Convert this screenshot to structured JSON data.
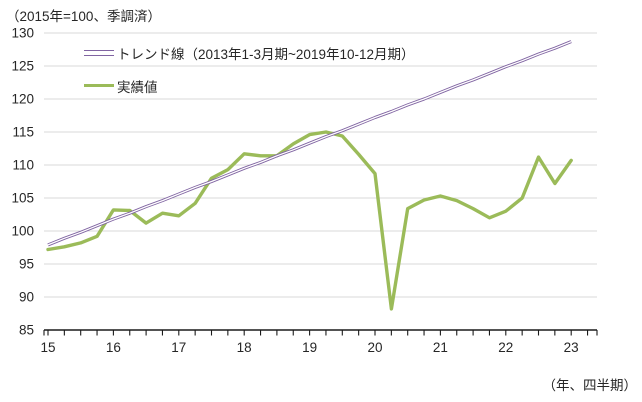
{
  "header": {
    "unit_note": "（2015年=100、季調済）"
  },
  "footer": {
    "xaxis_note": "（年、四半期）"
  },
  "colors": {
    "trend": "#8064a2",
    "actual": "#9bbb59",
    "gridline": "#d9d9d9",
    "axis": "#1a1a1a",
    "text": "#262626"
  },
  "chart_data": {
    "type": "line",
    "title": "",
    "unit_note": "（2015年=100、季調済）",
    "xaxis_note": "（年、四半期）",
    "x_frequency": "quarterly",
    "x_start": "2015Q1",
    "x_end": "2023Q1",
    "ylim": [
      85,
      130
    ],
    "ytick_step": 5,
    "grid": "horizontal",
    "legend_position": "top-left-inside",
    "y_tick_labels": [
      "130",
      "125",
      "120",
      "115",
      "110",
      "105",
      "100",
      "95",
      "90",
      "85"
    ],
    "x_year_labels": [
      "15",
      "16",
      "17",
      "18",
      "19",
      "20",
      "21",
      "22",
      "23"
    ],
    "series": [
      {
        "name": "トレンド線（2013年1-3月期~2019年10-12月期）",
        "color": "#8064a2",
        "style": "double",
        "values": [
          97.9,
          98.9,
          99.8,
          100.8,
          101.8,
          102.7,
          103.7,
          104.6,
          105.6,
          106.6,
          107.5,
          108.5,
          109.5,
          110.4,
          111.4,
          112.3,
          113.3,
          114.3,
          115.2,
          116.2,
          117.2,
          118.1,
          119.1,
          120.0,
          121.0,
          122.0,
          122.9,
          123.9,
          124.9,
          125.8,
          126.8,
          127.7,
          128.7
        ]
      },
      {
        "name": "実績値",
        "color": "#9bbb59",
        "style": "solid",
        "values": [
          97.2,
          97.6,
          98.2,
          99.2,
          103.2,
          103.1,
          101.2,
          102.7,
          102.3,
          104.2,
          108.0,
          109.3,
          111.7,
          111.4,
          111.4,
          113.2,
          114.6,
          115.0,
          114.4,
          111.6,
          108.7,
          88.2,
          103.4,
          104.7,
          105.3,
          104.6,
          103.4,
          102.0,
          103.0,
          105.0,
          111.2,
          107.2,
          110.7
        ]
      }
    ]
  }
}
